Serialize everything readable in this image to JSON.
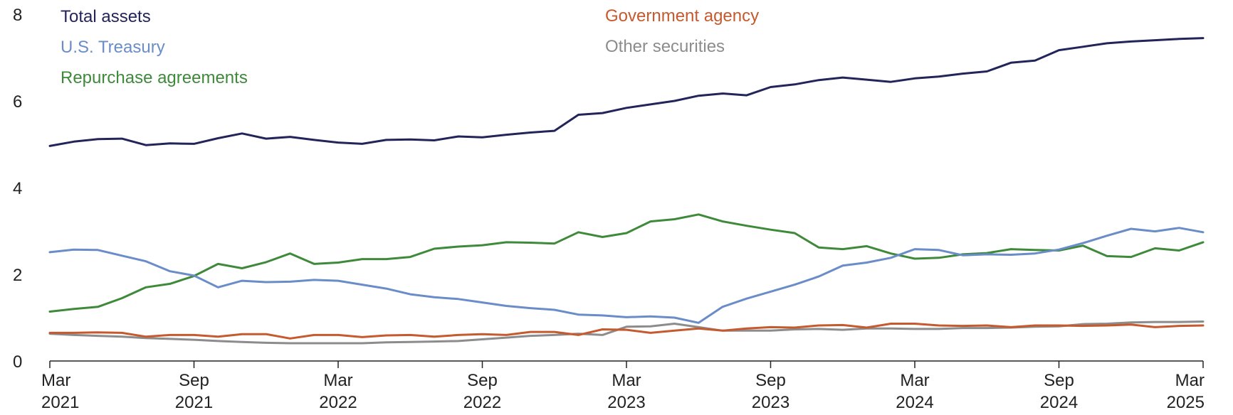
{
  "chart_data": {
    "type": "line",
    "title": "",
    "xlabel": "",
    "ylabel": "",
    "ylim": [
      0,
      8
    ],
    "yticks": [
      "0",
      "2",
      "4",
      "6",
      "8"
    ],
    "grid": false,
    "legend_position": "top",
    "x": [
      "2021-03",
      "2021-04",
      "2021-05",
      "2021-06",
      "2021-07",
      "2021-08",
      "2021-09",
      "2021-10",
      "2021-11",
      "2021-12",
      "2022-01",
      "2022-02",
      "2022-03",
      "2022-04",
      "2022-05",
      "2022-06",
      "2022-07",
      "2022-08",
      "2022-09",
      "2022-10",
      "2022-11",
      "2022-12",
      "2023-01",
      "2023-02",
      "2023-03",
      "2023-04",
      "2023-05",
      "2023-06",
      "2023-07",
      "2023-08",
      "2023-09",
      "2023-10",
      "2023-11",
      "2023-12",
      "2024-01",
      "2024-02",
      "2024-03",
      "2024-04",
      "2024-05",
      "2024-06",
      "2024-07",
      "2024-08",
      "2024-09",
      "2024-10",
      "2024-11",
      "2024-12",
      "2025-01",
      "2025-02",
      "2025-03"
    ],
    "xticks": [
      {
        "month": "Mar",
        "year": "2021",
        "x": "2021-03"
      },
      {
        "month": "Sep",
        "year": "2021",
        "x": "2021-09"
      },
      {
        "month": "Mar",
        "year": "2022",
        "x": "2022-03"
      },
      {
        "month": "Sep",
        "year": "2022",
        "x": "2022-09"
      },
      {
        "month": "Mar",
        "year": "2023",
        "x": "2023-03"
      },
      {
        "month": "Sep",
        "year": "2023",
        "x": "2023-09"
      },
      {
        "month": "Mar",
        "year": "2024",
        "x": "2024-03"
      },
      {
        "month": "Sep",
        "year": "2024",
        "x": "2024-09"
      },
      {
        "month": "Mar",
        "year": "2025",
        "x": "2025-03"
      }
    ],
    "series": [
      {
        "name": "Total assets",
        "color": "#232459",
        "values": [
          4.96,
          5.06,
          5.12,
          5.13,
          4.98,
          5.02,
          5.01,
          5.14,
          5.25,
          5.13,
          5.17,
          5.1,
          5.04,
          5.01,
          5.1,
          5.11,
          5.09,
          5.18,
          5.16,
          5.22,
          5.27,
          5.31,
          5.68,
          5.72,
          5.84,
          5.92,
          6.0,
          6.12,
          6.17,
          6.13,
          6.32,
          6.38,
          6.48,
          6.54,
          6.49,
          6.44,
          6.52,
          6.56,
          6.63,
          6.68,
          6.88,
          6.93,
          7.17,
          7.25,
          7.33,
          7.37,
          7.4,
          7.43,
          7.45
        ]
      },
      {
        "name": "U.S. Treasury",
        "color": "#6A8CC8",
        "values": [
          2.51,
          2.57,
          2.56,
          2.43,
          2.3,
          2.07,
          1.97,
          1.7,
          1.85,
          1.82,
          1.83,
          1.87,
          1.85,
          1.76,
          1.67,
          1.54,
          1.47,
          1.43,
          1.35,
          1.27,
          1.22,
          1.18,
          1.07,
          1.05,
          1.01,
          1.03,
          1.0,
          0.88,
          1.25,
          1.44,
          1.6,
          1.76,
          1.95,
          2.2,
          2.27,
          2.38,
          2.58,
          2.56,
          2.44,
          2.46,
          2.45,
          2.48,
          2.57,
          2.72,
          2.89,
          3.05,
          2.99,
          3.07,
          2.97
        ]
      },
      {
        "name": "Repurchase agreements",
        "color": "#3E8A3A",
        "values": [
          1.14,
          1.2,
          1.25,
          1.45,
          1.7,
          1.78,
          1.96,
          2.24,
          2.14,
          2.28,
          2.48,
          2.24,
          2.27,
          2.35,
          2.35,
          2.4,
          2.59,
          2.64,
          2.67,
          2.74,
          2.73,
          2.71,
          2.97,
          2.86,
          2.95,
          3.22,
          3.27,
          3.38,
          3.22,
          3.12,
          3.03,
          2.95,
          2.62,
          2.58,
          2.65,
          2.48,
          2.36,
          2.38,
          2.46,
          2.49,
          2.58,
          2.56,
          2.55,
          2.66,
          2.42,
          2.4,
          2.6,
          2.55,
          2.74
        ]
      },
      {
        "name": "Government agency",
        "color": "#C55A2E",
        "values": [
          0.65,
          0.65,
          0.66,
          0.65,
          0.56,
          0.6,
          0.6,
          0.56,
          0.62,
          0.62,
          0.52,
          0.6,
          0.6,
          0.55,
          0.59,
          0.6,
          0.56,
          0.6,
          0.62,
          0.6,
          0.67,
          0.67,
          0.6,
          0.73,
          0.72,
          0.65,
          0.7,
          0.75,
          0.7,
          0.75,
          0.78,
          0.77,
          0.82,
          0.83,
          0.77,
          0.86,
          0.86,
          0.82,
          0.81,
          0.82,
          0.78,
          0.82,
          0.82,
          0.81,
          0.82,
          0.84,
          0.78,
          0.81,
          0.82
        ]
      },
      {
        "name": "Other securities",
        "color": "#8C8C8C",
        "values": [
          0.63,
          0.6,
          0.58,
          0.56,
          0.53,
          0.51,
          0.49,
          0.46,
          0.44,
          0.42,
          0.41,
          0.41,
          0.41,
          0.41,
          0.43,
          0.44,
          0.45,
          0.46,
          0.5,
          0.54,
          0.58,
          0.6,
          0.63,
          0.6,
          0.79,
          0.8,
          0.86,
          0.78,
          0.7,
          0.7,
          0.7,
          0.73,
          0.74,
          0.72,
          0.75,
          0.75,
          0.74,
          0.74,
          0.76,
          0.76,
          0.77,
          0.79,
          0.8,
          0.85,
          0.86,
          0.89,
          0.9,
          0.9,
          0.91
        ]
      }
    ]
  }
}
